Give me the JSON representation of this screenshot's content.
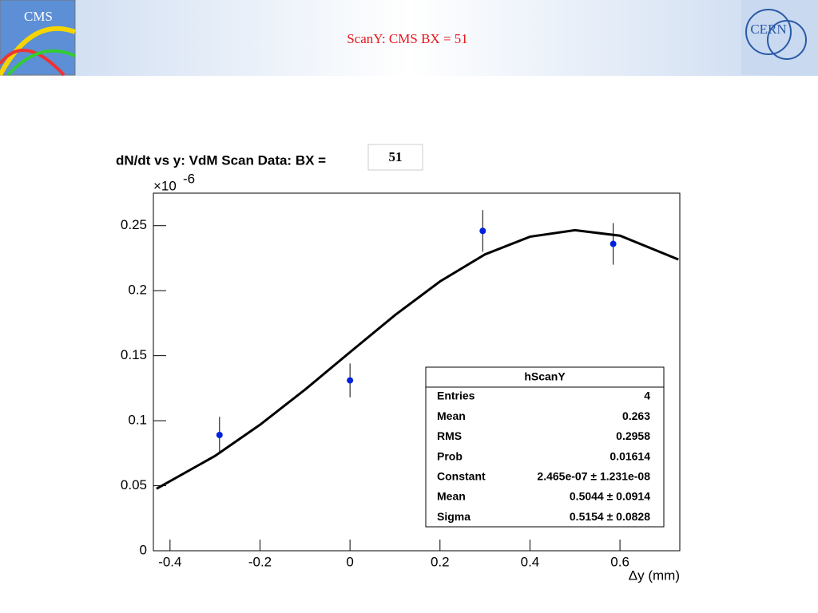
{
  "header": {
    "title": "ScanY: CMS BX = 51",
    "left_logo": "CMS",
    "right_logo": "CERN"
  },
  "chart_data": {
    "type": "scatter",
    "title": "dN/dt vs y: VdM Scan Data: BX =",
    "title_box": "51",
    "y_multiplier": "×10",
    "y_multiplier_exp": "-6",
    "x_label": "Δy (mm)",
    "color": "#0022dd",
    "x": [
      -0.29,
      0,
      0.295,
      0.585
    ],
    "values": [
      0.089,
      0.131,
      0.246,
      0.236
    ],
    "errors": [
      0.014,
      0.013,
      0.016,
      0.016
    ],
    "fit": {
      "color": "#000000",
      "x": [
        -0.43,
        -0.3,
        -0.2,
        -0.1,
        0,
        0.1,
        0.2,
        0.3,
        0.4,
        0.5,
        0.6,
        0.73
      ],
      "values": [
        0.0477,
        0.0729,
        0.0969,
        0.1239,
        0.1527,
        0.1812,
        0.2071,
        0.2279,
        0.2415,
        0.2465,
        0.2423,
        0.224
      ]
    },
    "xlim": [
      -0.437,
      0.733
    ],
    "xticks": [
      -0.4,
      -0.2,
      0,
      0.2,
      0.4,
      0.6
    ],
    "ylim": [
      0,
      0.275
    ],
    "yticks": [
      0,
      0.05,
      0.1,
      0.15,
      0.2,
      0.25
    ],
    "stats": {
      "title": "hScanY",
      "rows": [
        [
          "Entries",
          "4"
        ],
        [
          "Mean",
          "0.263"
        ],
        [
          "RMS",
          "0.2958"
        ],
        [
          "Prob",
          "0.01614"
        ],
        [
          "Constant",
          "2.465e-07 ± 1.231e-08"
        ],
        [
          "Mean",
          "0.5044 ± 0.0914"
        ],
        [
          "Sigma",
          "0.5154 ± 0.0828"
        ]
      ]
    }
  }
}
